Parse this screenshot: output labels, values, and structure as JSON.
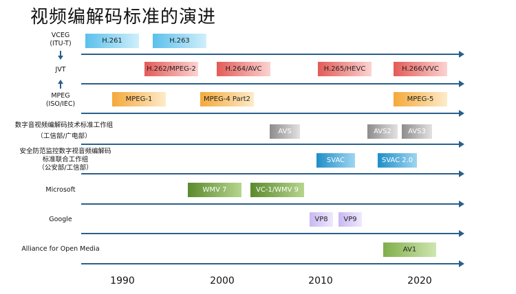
{
  "title": "视频编解码标准的演进",
  "rows": {
    "vceg": [
      "VCEG",
      "(ITU-T)"
    ],
    "jvt": "JVT",
    "mpeg": [
      "MPEG",
      "(ISO/IEC)"
    ],
    "avs_group": [
      "数字音视频编解码技术标准工作组",
      "（工信部/广电部）"
    ],
    "svac_group": [
      "安全防范监控数字视音频编解码",
      "标准联合工作组",
      "（公安部/工信部）"
    ],
    "microsoft": "Microsoft",
    "google": "Google",
    "aom": "Alliance for Open Media"
  },
  "standards": {
    "h261": "H.261",
    "h263": "H.263",
    "h262": "H.262/MPEG-2",
    "h264": "H.264/AVC",
    "h265": "H.265/HEVC",
    "h266": "H.266/VVC",
    "mpeg1": "MPEG-1",
    "mpeg4": "MPEG-4 Part2",
    "mpeg5": "MPEG-5",
    "avs": "AVS",
    "avs2": "AVS2",
    "avs3": "AVS3",
    "svac": "SVAC",
    "svac2": "SVAC 2.0",
    "wmv7": "WMV 7",
    "vc1": "VC-1/WMV 9",
    "vp8": "VP8",
    "vp9": "VP9",
    "av1": "AV1"
  },
  "years": [
    "1990",
    "2000",
    "2010",
    "2020"
  ],
  "colors": {
    "arrow": "#2a5f8a",
    "itu": "#5bc0eb",
    "jvt": "#e35b57",
    "mpeg": "#f4a93b",
    "avs": "#8c8c8c",
    "svac": "#1e8ec9",
    "microsoft": "#5b8a2c",
    "google": "#c9b8f2",
    "aom": "#7fae4a"
  }
}
